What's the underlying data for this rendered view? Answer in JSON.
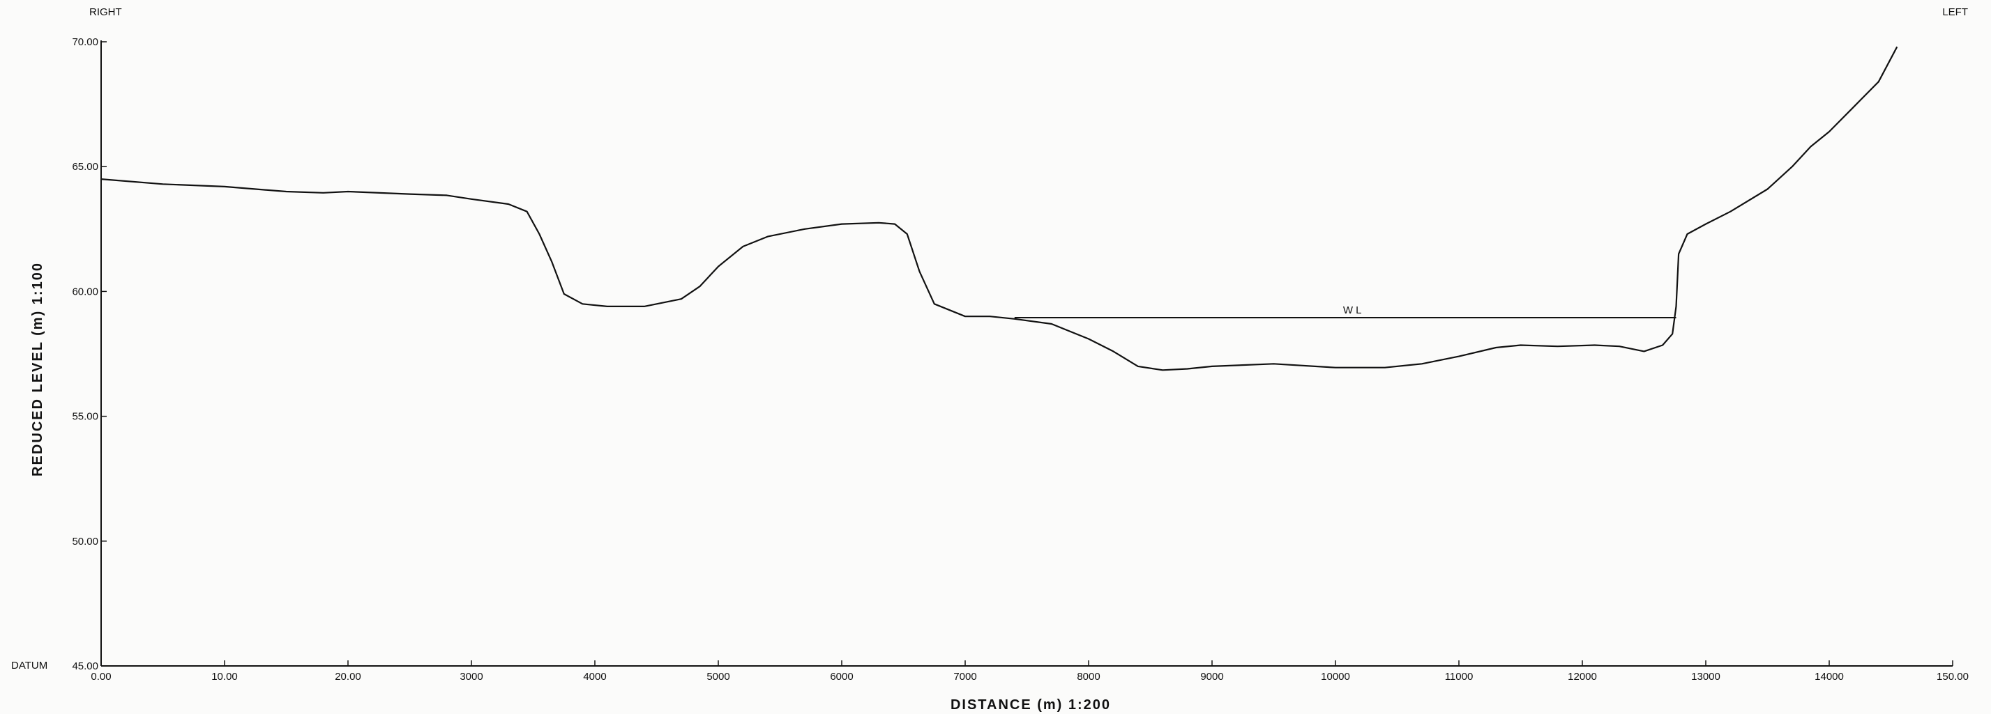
{
  "chart_data": {
    "type": "line",
    "side_labels": {
      "left_bank": "RIGHT",
      "right_bank": "LEFT"
    },
    "datum_label": "DATUM",
    "xlabel": "DISTANCE (m) 1:200",
    "ylabel": "REDUCED LEVEL (m) 1:100",
    "xlim": [
      0,
      150
    ],
    "ylim": [
      45,
      70
    ],
    "x_ticks": [
      0,
      10,
      20,
      30,
      40,
      50,
      60,
      70,
      80,
      90,
      100,
      110,
      120,
      130,
      140,
      150
    ],
    "x_tick_labels": [
      "0.00",
      "10.00",
      "20.00",
      "3000",
      "4000",
      "5000",
      "6000",
      "7000",
      "8000",
      "9000",
      "10000",
      "11000",
      "12000",
      "13000",
      "14000",
      "150.00"
    ],
    "y_ticks": [
      45,
      50,
      55,
      60,
      65,
      70
    ],
    "y_tick_labels": [
      "45.00",
      "50.00",
      "55.00",
      "60.00",
      "65.00",
      "70.00"
    ],
    "series": [
      {
        "x": [
          0,
          5,
          10,
          15,
          18,
          20,
          25,
          28,
          30,
          33,
          34.5,
          35.5,
          36.5,
          37.5,
          39,
          41,
          44,
          47,
          48.5,
          50,
          52,
          54,
          57,
          60,
          63,
          64.3,
          65.3,
          66.3,
          67.5,
          70,
          72,
          74,
          77,
          80,
          82,
          84,
          86,
          88,
          90,
          95,
          100,
          104,
          107,
          110,
          113,
          115,
          118,
          121,
          123,
          125,
          126.5,
          127.3,
          127.6,
          127.8,
          128.5,
          130,
          132,
          135,
          137,
          138.5,
          140,
          142,
          144,
          145.5
        ],
        "y": [
          64.5,
          64.3,
          64.2,
          64.0,
          63.95,
          64.0,
          63.9,
          63.85,
          63.7,
          63.5,
          63.2,
          62.3,
          61.2,
          59.9,
          59.5,
          59.4,
          59.4,
          59.7,
          60.2,
          61.0,
          61.8,
          62.2,
          62.5,
          62.7,
          62.75,
          62.7,
          62.3,
          60.8,
          59.5,
          59.0,
          59.0,
          58.9,
          58.7,
          58.1,
          57.6,
          57.0,
          56.85,
          56.9,
          57.0,
          57.1,
          56.95,
          56.95,
          57.1,
          57.4,
          57.75,
          57.85,
          57.8,
          57.85,
          57.8,
          57.6,
          57.85,
          58.3,
          59.4,
          61.5,
          62.3,
          62.7,
          63.2,
          64.1,
          65.0,
          65.8,
          66.4,
          67.4,
          68.4,
          69.8
        ]
      }
    ],
    "water_level": {
      "label": "W L",
      "level": 58.95,
      "x_start": 74,
      "x_end": 127.6
    }
  }
}
